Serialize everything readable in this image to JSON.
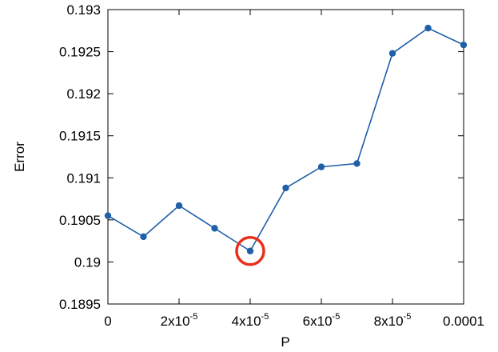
{
  "chart_data": {
    "type": "line",
    "title": "",
    "xlabel": "P",
    "ylabel": "Error",
    "xlim": [
      0,
      0.0001
    ],
    "ylim": [
      0.1895,
      0.193
    ],
    "x_ticks": [
      {
        "value": 0,
        "base": "0",
        "exp": ""
      },
      {
        "value": 2e-05,
        "base": "2x10",
        "exp": "-5"
      },
      {
        "value": 4e-05,
        "base": "4x10",
        "exp": "-5"
      },
      {
        "value": 6e-05,
        "base": "6x10",
        "exp": "-5"
      },
      {
        "value": 8e-05,
        "base": "8x10",
        "exp": "-5"
      },
      {
        "value": 0.0001,
        "base": "0.0001",
        "exp": ""
      }
    ],
    "y_ticks": [
      {
        "value": 0.1895,
        "label": "0.1895"
      },
      {
        "value": 0.19,
        "label": "0.19"
      },
      {
        "value": 0.1905,
        "label": "0.1905"
      },
      {
        "value": 0.191,
        "label": "0.191"
      },
      {
        "value": 0.1915,
        "label": "0.1915"
      },
      {
        "value": 0.192,
        "label": "0.192"
      },
      {
        "value": 0.1925,
        "label": "0.1925"
      },
      {
        "value": 0.193,
        "label": "0.193"
      }
    ],
    "grid": false,
    "series": [
      {
        "color": "#1f5fa8",
        "points": [
          {
            "x": 0.0,
            "y": 0.19055
          },
          {
            "x": 1e-05,
            "y": 0.1903
          },
          {
            "x": 2e-05,
            "y": 0.19067
          },
          {
            "x": 3e-05,
            "y": 0.1904
          },
          {
            "x": 4e-05,
            "y": 0.19013
          },
          {
            "x": 5e-05,
            "y": 0.19088
          },
          {
            "x": 6e-05,
            "y": 0.19113
          },
          {
            "x": 7e-05,
            "y": 0.19117
          },
          {
            "x": 8e-05,
            "y": 0.19248
          },
          {
            "x": 9e-05,
            "y": 0.19278
          },
          {
            "x": 0.0001,
            "y": 0.19258
          }
        ]
      }
    ],
    "highlight": {
      "x": 4e-05,
      "y": 0.19013,
      "color": "#e8301c"
    }
  }
}
